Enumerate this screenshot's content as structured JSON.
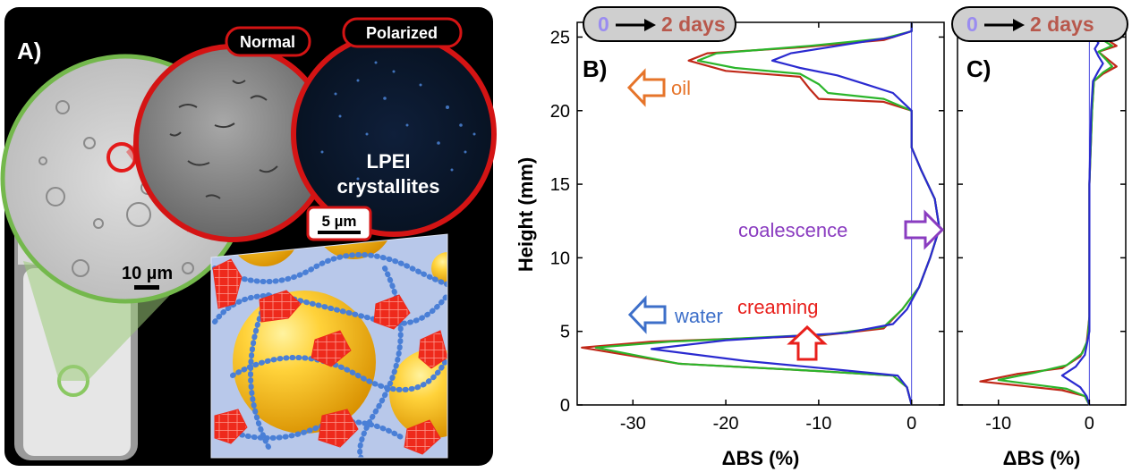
{
  "panel_a": {
    "label": "A)",
    "normal_label": "Normal",
    "polarized_label": "Polarized",
    "crystallite_line1": "LPEI",
    "crystallite_line2": "crystallites",
    "scale_big": "5 µm",
    "scale_small": "10 µm"
  },
  "timeline": {
    "start": "0",
    "end": "2 days"
  },
  "chart_data": [
    {
      "type": "line",
      "panel": "B)",
      "xlabel": "ΔBS (%)",
      "ylabel": "Height (mm)",
      "xlim": [
        -36,
        3.5
      ],
      "ylim": [
        0,
        26
      ],
      "xticks": [
        -30,
        -20,
        -10,
        0
      ],
      "yticks": [
        0,
        5,
        10,
        15,
        20,
        25
      ],
      "annotations": [
        {
          "text": "oil",
          "color": "#e6742a"
        },
        {
          "text": "coalescence",
          "color": "#8a3cc0"
        },
        {
          "text": "water",
          "color": "#3d6fc9"
        },
        {
          "text": "creaming",
          "color": "#e8201c"
        }
      ],
      "series": [
        {
          "color": "#c02818",
          "points": [
            [
              0,
              0
            ],
            [
              -0.5,
              1.2
            ],
            [
              -2,
              2
            ],
            [
              -10,
              2.3
            ],
            [
              -25,
              2.8
            ],
            [
              -35.5,
              3.9
            ],
            [
              -28,
              4.3
            ],
            [
              -10,
              4.7
            ],
            [
              -3,
              5.2
            ],
            [
              -1,
              6.5
            ],
            [
              0.8,
              8
            ],
            [
              2,
              10
            ],
            [
              3,
              12
            ],
            [
              2.5,
              14
            ],
            [
              1,
              16
            ],
            [
              0,
              17.5
            ],
            [
              0,
              20
            ],
            [
              -3,
              20.6
            ],
            [
              -10,
              20.8
            ],
            [
              -11,
              21.5
            ],
            [
              -12,
              22.3
            ],
            [
              -20,
              22.7
            ],
            [
              -24,
              23.4
            ],
            [
              -22,
              23.9
            ],
            [
              -12,
              24.3
            ],
            [
              -3,
              24.8
            ],
            [
              0,
              25.4
            ],
            [
              0,
              26
            ]
          ]
        },
        {
          "color": "#2bb52b",
          "points": [
            [
              0,
              0
            ],
            [
              -0.5,
              1.2
            ],
            [
              -2,
              2
            ],
            [
              -10,
              2.3
            ],
            [
              -25,
              2.8
            ],
            [
              -34,
              3.9
            ],
            [
              -26,
              4.3
            ],
            [
              -9,
              4.8
            ],
            [
              -3,
              5.3
            ],
            [
              -1,
              6.5
            ],
            [
              0.8,
              8
            ],
            [
              2,
              10
            ],
            [
              3,
              12
            ],
            [
              2.5,
              14
            ],
            [
              1,
              16
            ],
            [
              0,
              17.5
            ],
            [
              0,
              20
            ],
            [
              -3,
              20.8
            ],
            [
              -9,
              21.2
            ],
            [
              -10,
              21.8
            ],
            [
              -12,
              22.5
            ],
            [
              -19,
              22.9
            ],
            [
              -23,
              23.4
            ],
            [
              -21,
              23.9
            ],
            [
              -11,
              24.4
            ],
            [
              -3,
              24.9
            ],
            [
              0,
              25.4
            ],
            [
              0,
              26
            ]
          ]
        },
        {
          "color": "#2a2ad0",
          "points": [
            [
              0,
              0
            ],
            [
              -0.5,
              1.2
            ],
            [
              -1.5,
              2
            ],
            [
              -8,
              2.4
            ],
            [
              -18,
              3
            ],
            [
              -28,
              3.8
            ],
            [
              -20,
              4.4
            ],
            [
              -7,
              4.9
            ],
            [
              -2,
              5.5
            ],
            [
              -0.5,
              6.5
            ],
            [
              0.8,
              8
            ],
            [
              2,
              10
            ],
            [
              3,
              12
            ],
            [
              2.5,
              14
            ],
            [
              1,
              16
            ],
            [
              0,
              17.5
            ],
            [
              0,
              20
            ],
            [
              -2,
              21.2
            ],
            [
              -5,
              21.8
            ],
            [
              -8,
              22.4
            ],
            [
              -12,
              22.9
            ],
            [
              -15,
              23.4
            ],
            [
              -13,
              23.9
            ],
            [
              -7,
              24.5
            ],
            [
              -2,
              25
            ],
            [
              0,
              25.4
            ],
            [
              0,
              26
            ]
          ]
        }
      ]
    },
    {
      "type": "line",
      "panel": "C)",
      "xlabel": "ΔBS (%)",
      "ylabel": "",
      "xlim": [
        -14.5,
        4
      ],
      "ylim": [
        0,
        26
      ],
      "xticks": [
        -10,
        0
      ],
      "yticks": [
        0,
        5,
        10,
        15,
        20,
        25
      ],
      "series": [
        {
          "color": "#c02818",
          "points": [
            [
              0,
              0
            ],
            [
              -0.5,
              0.6
            ],
            [
              -3,
              1
            ],
            [
              -12,
              1.6
            ],
            [
              -8,
              2.1
            ],
            [
              -3,
              2.5
            ],
            [
              -1,
              3.3
            ],
            [
              -0.3,
              4.2
            ],
            [
              0,
              6
            ],
            [
              0,
              10
            ],
            [
              0,
              15
            ],
            [
              0.3,
              20
            ],
            [
              0.5,
              22
            ],
            [
              1.5,
              22.5
            ],
            [
              3,
              23
            ],
            [
              2,
              23.5
            ],
            [
              1,
              24
            ],
            [
              3,
              24.4
            ],
            [
              2,
              24.8
            ],
            [
              0.5,
              25.2
            ],
            [
              0,
              26
            ]
          ]
        },
        {
          "color": "#2bb52b",
          "points": [
            [
              0,
              0
            ],
            [
              -0.5,
              0.6
            ],
            [
              -2.5,
              1.1
            ],
            [
              -10,
              1.7
            ],
            [
              -6,
              2.2
            ],
            [
              -2.5,
              2.7
            ],
            [
              -0.8,
              3.5
            ],
            [
              -0.2,
              4.4
            ],
            [
              0,
              6
            ],
            [
              0,
              10
            ],
            [
              0,
              15
            ],
            [
              0.3,
              20
            ],
            [
              0.5,
              22
            ],
            [
              1.5,
              22.6
            ],
            [
              2.5,
              23
            ],
            [
              1.8,
              23.5
            ],
            [
              1,
              24
            ],
            [
              2.5,
              24.4
            ],
            [
              1.5,
              24.8
            ],
            [
              0.5,
              25.2
            ],
            [
              0,
              26
            ]
          ]
        },
        {
          "color": "#2a2ad0",
          "points": [
            [
              0,
              0
            ],
            [
              -0.3,
              0.6
            ],
            [
              -1,
              1.2
            ],
            [
              -3,
              2
            ],
            [
              -1.5,
              2.6
            ],
            [
              -0.5,
              3.4
            ],
            [
              0,
              5
            ],
            [
              0,
              10
            ],
            [
              0,
              15
            ],
            [
              0.2,
              20
            ],
            [
              0.4,
              22
            ],
            [
              1,
              22.7
            ],
            [
              1.5,
              23.2
            ],
            [
              1,
              23.7
            ],
            [
              0.6,
              24.2
            ],
            [
              1,
              24.6
            ],
            [
              0.5,
              25
            ],
            [
              0,
              26
            ]
          ]
        }
      ]
    }
  ]
}
